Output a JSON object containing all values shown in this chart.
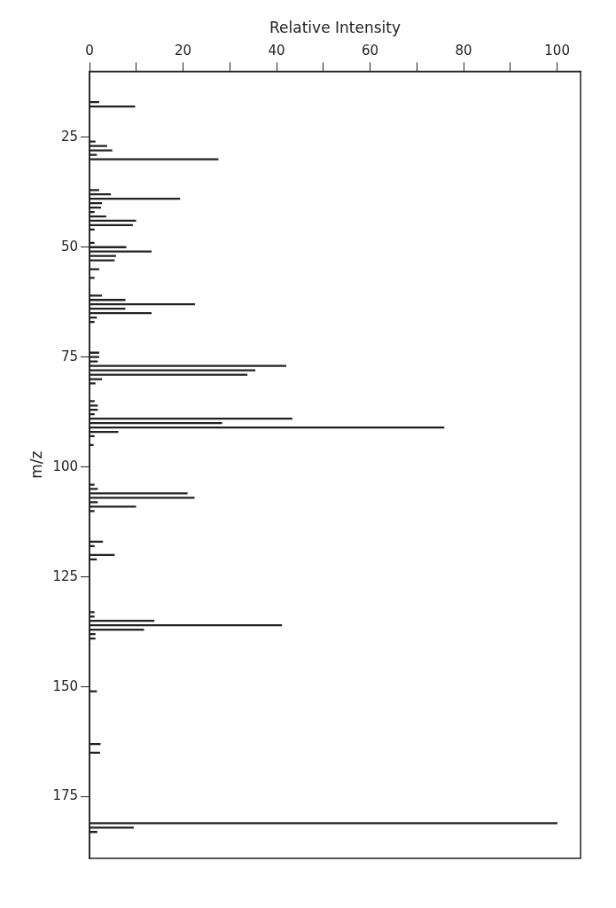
{
  "chart_data": {
    "type": "bar",
    "orientation": "horizontal",
    "xlabel": "Relative Intensity",
    "ylabel": "m/z",
    "x": [
      17,
      18,
      26,
      27,
      28,
      29,
      30,
      37,
      38,
      39,
      40,
      41,
      42,
      43,
      44,
      45,
      46,
      49,
      50,
      51,
      52,
      53,
      55,
      57,
      61,
      62,
      63,
      64,
      65,
      66,
      67,
      74,
      75,
      76,
      77,
      78,
      79,
      80,
      81,
      85,
      86,
      87,
      88,
      89,
      90,
      91,
      92,
      93,
      95,
      104,
      105,
      106,
      107,
      108,
      109,
      110,
      117,
      118,
      120,
      121,
      133,
      134,
      135,
      136,
      137,
      138,
      139,
      151,
      163,
      165,
      181,
      182,
      183
    ],
    "values": [
      2,
      9.7,
      1.2,
      3.7,
      4.8,
      1.5,
      27.5,
      2,
      4.5,
      19.3,
      2.6,
      2.4,
      1,
      3.5,
      9.9,
      9.2,
      1,
      1,
      7.8,
      13.2,
      5.6,
      5.3,
      2,
      1,
      2.6,
      7.6,
      22.5,
      7.6,
      13.2,
      1.5,
      1,
      2,
      2,
      1.7,
      42,
      35.4,
      33.7,
      2.6,
      1.2,
      1,
      1.7,
      1.7,
      1,
      43.3,
      28.3,
      75.8,
      6.1,
      1,
      0.8,
      1,
      1.7,
      20.9,
      22.4,
      1.7,
      9.9,
      1,
      2.8,
      1,
      5.3,
      1.5,
      1,
      1,
      13.8,
      41.1,
      11.6,
      1.2,
      1.2,
      1.5,
      2.3,
      2.2,
      100,
      9.4,
      1.6
    ],
    "color": "#222222",
    "xlim": [
      0,
      105
    ],
    "xticks": [
      0,
      {
        "value": 10,
        "label": null
      },
      20,
      {
        "value": 30,
        "label": null
      },
      40,
      {
        "value": 50,
        "label": null
      },
      60,
      {
        "value": 70,
        "label": null
      },
      80,
      {
        "value": 90,
        "label": null
      },
      100
    ],
    "ylim": [
      189,
      10
    ],
    "yticks": [
      25,
      50,
      75,
      100,
      125,
      150,
      175
    ],
    "grid": false,
    "legend": false
  }
}
